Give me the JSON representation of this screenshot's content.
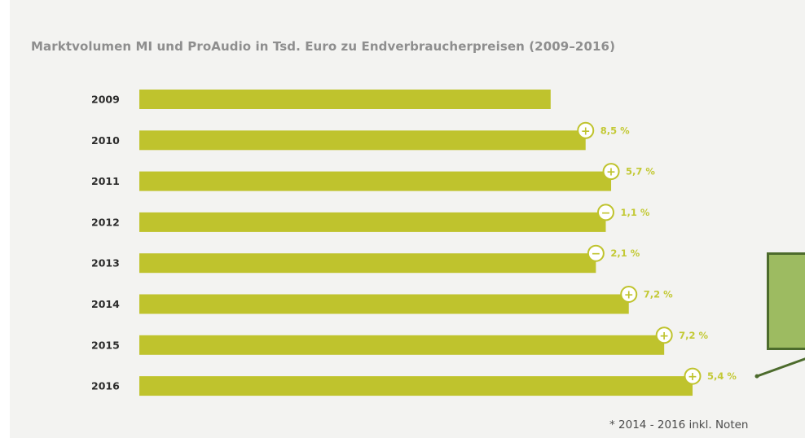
{
  "chart_data": {
    "type": "bar",
    "orientation": "horizontal",
    "title": "Marktvolumen MI und ProAudio in Tsd. Euro zu Endverbraucherpreisen (2009–2016)",
    "categories": [
      "2009",
      "2010",
      "2011",
      "2012",
      "2013",
      "2014",
      "2015",
      "2016"
    ],
    "values": [
      100,
      108.5,
      114.7,
      113.4,
      111.0,
      119.0,
      127.6,
      134.5
    ],
    "changes": [
      null,
      {
        "sign": "+",
        "label": "8,5 %"
      },
      {
        "sign": "+",
        "label": "5,7 %"
      },
      {
        "sign": "−",
        "label": "1,1 %"
      },
      {
        "sign": "−",
        "label": "2,1 %"
      },
      {
        "sign": "+",
        "label": "7,2 %"
      },
      {
        "sign": "+",
        "label": "7,2 %"
      },
      {
        "sign": "+",
        "label": "5,4 %"
      }
    ],
    "xlabel": "",
    "ylabel": "",
    "xlim": [
      0,
      134.5
    ],
    "grid": false,
    "legend": "none",
    "colors": {
      "bar": "#bfc32d",
      "badge_border": "#bfc32d",
      "badge_fill": "#ffffff",
      "change_text": "#c3c935",
      "callout_fill": "#9dbb61",
      "callout_border": "#4c6b2c"
    }
  },
  "footnote": "* 2014 - 2016 inkl. Noten"
}
